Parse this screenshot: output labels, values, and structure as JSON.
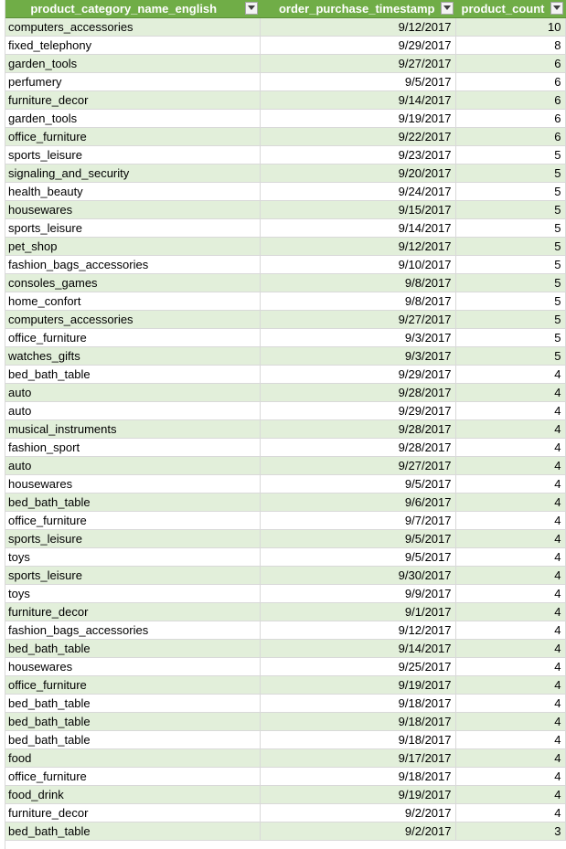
{
  "headers": {
    "category": "product_category_name_english",
    "timestamp": "order_purchase_timestamp",
    "count": "product_count"
  },
  "colors": {
    "header_bg": "#70ad47",
    "header_text": "#ffffff",
    "band_row": "#e2efda",
    "plain_row": "#ffffff"
  },
  "filter_icon": "filter-dropdown-arrow-icon",
  "rows": [
    {
      "category": "computers_accessories",
      "timestamp": "9/12/2017",
      "count": "10"
    },
    {
      "category": "fixed_telephony",
      "timestamp": "9/29/2017",
      "count": "8"
    },
    {
      "category": "garden_tools",
      "timestamp": "9/27/2017",
      "count": "6"
    },
    {
      "category": "perfumery",
      "timestamp": "9/5/2017",
      "count": "6"
    },
    {
      "category": "furniture_decor",
      "timestamp": "9/14/2017",
      "count": "6"
    },
    {
      "category": "garden_tools",
      "timestamp": "9/19/2017",
      "count": "6"
    },
    {
      "category": "office_furniture",
      "timestamp": "9/22/2017",
      "count": "6"
    },
    {
      "category": "sports_leisure",
      "timestamp": "9/23/2017",
      "count": "5"
    },
    {
      "category": "signaling_and_security",
      "timestamp": "9/20/2017",
      "count": "5"
    },
    {
      "category": "health_beauty",
      "timestamp": "9/24/2017",
      "count": "5"
    },
    {
      "category": "housewares",
      "timestamp": "9/15/2017",
      "count": "5"
    },
    {
      "category": "sports_leisure",
      "timestamp": "9/14/2017",
      "count": "5"
    },
    {
      "category": "pet_shop",
      "timestamp": "9/12/2017",
      "count": "5"
    },
    {
      "category": "fashion_bags_accessories",
      "timestamp": "9/10/2017",
      "count": "5"
    },
    {
      "category": "consoles_games",
      "timestamp": "9/8/2017",
      "count": "5"
    },
    {
      "category": "home_confort",
      "timestamp": "9/8/2017",
      "count": "5"
    },
    {
      "category": "computers_accessories",
      "timestamp": "9/27/2017",
      "count": "5"
    },
    {
      "category": "office_furniture",
      "timestamp": "9/3/2017",
      "count": "5"
    },
    {
      "category": "watches_gifts",
      "timestamp": "9/3/2017",
      "count": "5"
    },
    {
      "category": "bed_bath_table",
      "timestamp": "9/29/2017",
      "count": "4"
    },
    {
      "category": "auto",
      "timestamp": "9/28/2017",
      "count": "4"
    },
    {
      "category": "auto",
      "timestamp": "9/29/2017",
      "count": "4"
    },
    {
      "category": "musical_instruments",
      "timestamp": "9/28/2017",
      "count": "4"
    },
    {
      "category": "fashion_sport",
      "timestamp": "9/28/2017",
      "count": "4"
    },
    {
      "category": "auto",
      "timestamp": "9/27/2017",
      "count": "4"
    },
    {
      "category": "housewares",
      "timestamp": "9/5/2017",
      "count": "4"
    },
    {
      "category": "bed_bath_table",
      "timestamp": "9/6/2017",
      "count": "4"
    },
    {
      "category": "office_furniture",
      "timestamp": "9/7/2017",
      "count": "4"
    },
    {
      "category": "sports_leisure",
      "timestamp": "9/5/2017",
      "count": "4"
    },
    {
      "category": "toys",
      "timestamp": "9/5/2017",
      "count": "4"
    },
    {
      "category": "sports_leisure",
      "timestamp": "9/30/2017",
      "count": "4"
    },
    {
      "category": "toys",
      "timestamp": "9/9/2017",
      "count": "4"
    },
    {
      "category": "furniture_decor",
      "timestamp": "9/1/2017",
      "count": "4"
    },
    {
      "category": "fashion_bags_accessories",
      "timestamp": "9/12/2017",
      "count": "4"
    },
    {
      "category": "bed_bath_table",
      "timestamp": "9/14/2017",
      "count": "4"
    },
    {
      "category": "housewares",
      "timestamp": "9/25/2017",
      "count": "4"
    },
    {
      "category": "office_furniture",
      "timestamp": "9/19/2017",
      "count": "4"
    },
    {
      "category": "bed_bath_table",
      "timestamp": "9/18/2017",
      "count": "4"
    },
    {
      "category": "bed_bath_table",
      "timestamp": "9/18/2017",
      "count": "4"
    },
    {
      "category": "bed_bath_table",
      "timestamp": "9/18/2017",
      "count": "4"
    },
    {
      "category": "food",
      "timestamp": "9/17/2017",
      "count": "4"
    },
    {
      "category": "office_furniture",
      "timestamp": "9/18/2017",
      "count": "4"
    },
    {
      "category": "food_drink",
      "timestamp": "9/19/2017",
      "count": "4"
    },
    {
      "category": "furniture_decor",
      "timestamp": "9/2/2017",
      "count": "4"
    },
    {
      "category": "bed_bath_table",
      "timestamp": "9/2/2017",
      "count": "3"
    }
  ]
}
